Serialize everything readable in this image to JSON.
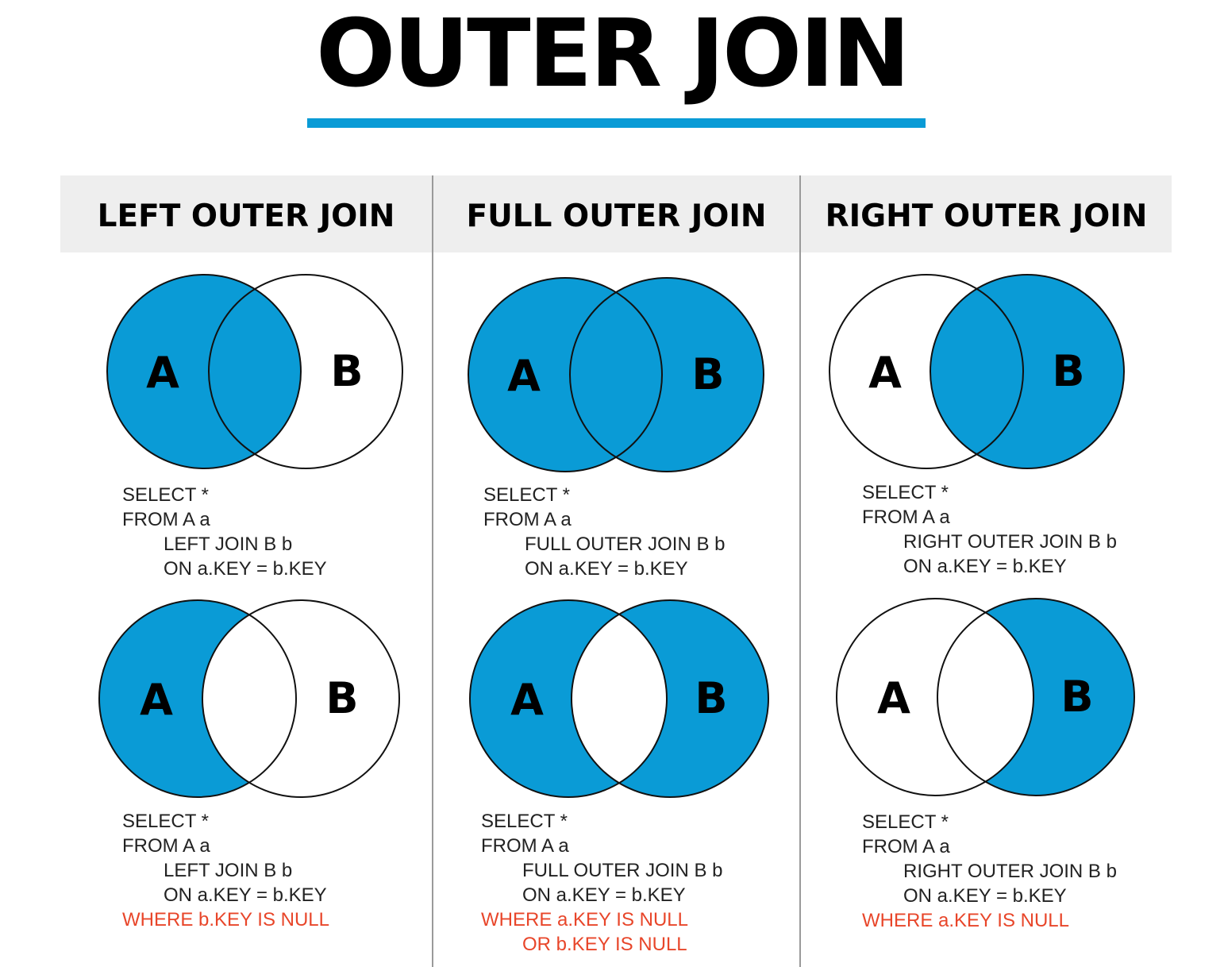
{
  "title": "OUTER JOIN",
  "colors": {
    "fill": "#0a9bd6",
    "accent": "#0a9bd6",
    "warning": "#e8462a",
    "header_bg": "#eeeeee"
  },
  "columns": [
    {
      "header": "LEFT OUTER JOIN",
      "diagrams": [
        {
          "a_label": "A",
          "b_label": "B",
          "fill_a_only": true,
          "fill_intersection": true,
          "fill_b_only": false,
          "sql": {
            "select": "SELECT *",
            "from": "FROM A a",
            "join": "LEFT JOIN B b",
            "on": "ON a.KEY = b.KEY"
          }
        },
        {
          "a_label": "A",
          "b_label": "B",
          "fill_a_only": true,
          "fill_intersection": false,
          "fill_b_only": false,
          "sql": {
            "select": "SELECT *",
            "from": "FROM A a",
            "join": "LEFT JOIN B b",
            "on": "ON a.KEY = b.KEY",
            "where": "WHERE b.KEY IS NULL"
          }
        }
      ]
    },
    {
      "header": "FULL OUTER JOIN",
      "diagrams": [
        {
          "a_label": "A",
          "b_label": "B",
          "fill_a_only": true,
          "fill_intersection": true,
          "fill_b_only": true,
          "sql": {
            "select": "SELECT *",
            "from": "FROM A a",
            "join": "FULL OUTER JOIN B b",
            "on": "ON a.KEY = b.KEY"
          }
        },
        {
          "a_label": "A",
          "b_label": "B",
          "fill_a_only": true,
          "fill_intersection": false,
          "fill_b_only": true,
          "sql": {
            "select": "SELECT *",
            "from": "FROM A a",
            "join": "FULL OUTER JOIN B b",
            "on": "ON a.KEY = b.KEY",
            "where": "WHERE a.KEY IS NULL",
            "or": "OR b.KEY IS NULL"
          }
        }
      ]
    },
    {
      "header": "RIGHT OUTER JOIN",
      "diagrams": [
        {
          "a_label": "A",
          "b_label": "B",
          "fill_a_only": false,
          "fill_intersection": true,
          "fill_b_only": true,
          "sql": {
            "select": "SELECT *",
            "from": "FROM A a",
            "join": "RIGHT OUTER JOIN B b",
            "on": "ON a.KEY = b.KEY"
          }
        },
        {
          "a_label": "A",
          "b_label": "B",
          "fill_a_only": false,
          "fill_intersection": false,
          "fill_b_only": true,
          "sql": {
            "select": "SELECT *",
            "from": "FROM A a",
            "join": "RIGHT OUTER JOIN B b",
            "on": "ON a.KEY = b.KEY",
            "where": "WHERE a.KEY IS NULL"
          }
        }
      ]
    }
  ]
}
